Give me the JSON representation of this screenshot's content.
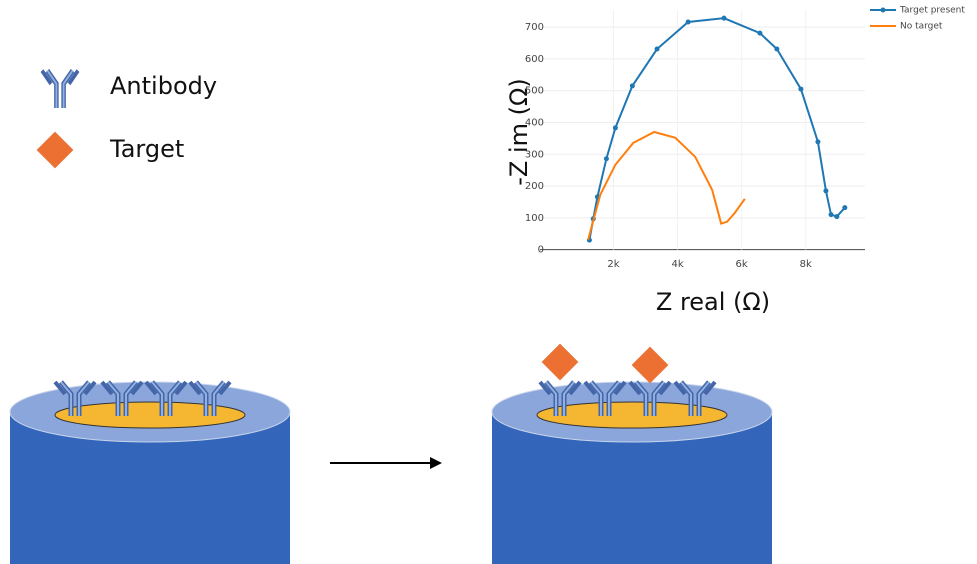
{
  "legend": {
    "items": [
      {
        "label": "Antibody"
      },
      {
        "label": "Target"
      }
    ]
  },
  "chart_data": {
    "type": "line",
    "y_label": "-Z im (Ω)",
    "x_label": "Z real (Ω)",
    "series": [
      {
        "name": "Target present",
        "color": "#1f77b4",
        "markers": true,
        "x": [
          1250,
          1370,
          1500,
          1780,
          2060,
          2590,
          3360,
          4330,
          5450,
          6570,
          7100,
          7850,
          8380,
          8630,
          8790,
          8970,
          9220
        ],
        "values": [
          30,
          97,
          166,
          286,
          383,
          515,
          631,
          716,
          728,
          681,
          631,
          505,
          339,
          185,
          110,
          104,
          132
        ]
      },
      {
        "name": "No target",
        "color": "#ff7f0e",
        "markers": false,
        "x": [
          1210,
          1590,
          2060,
          2620,
          3270,
          3930,
          4550,
          5080,
          5360,
          5550,
          5790,
          6100
        ],
        "values": [
          31,
          173,
          267,
          336,
          370,
          352,
          292,
          188,
          82,
          88,
          116,
          160
        ]
      }
    ],
    "xlim": [
      800,
      9600
    ],
    "ylim": [
      -20,
      760
    ],
    "xticks": [
      {
        "value": 2000,
        "label": "2k"
      },
      {
        "value": 4000,
        "label": "4k"
      },
      {
        "value": 6000,
        "label": "6k"
      },
      {
        "value": 8000,
        "label": "8k"
      }
    ],
    "yticks": [
      0,
      100,
      200,
      300,
      400,
      500,
      600,
      700
    ],
    "grid": true,
    "legend_position": "top-right"
  }
}
